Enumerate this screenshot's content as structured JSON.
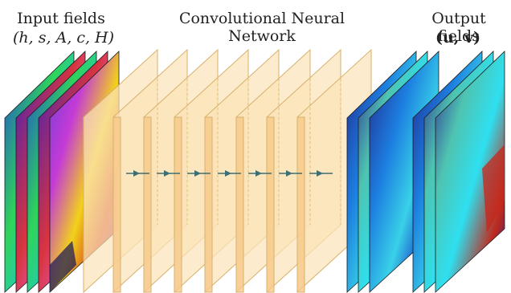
{
  "input": {
    "title": "Input fields",
    "vars": "(h, s, A, c, H)"
  },
  "network": {
    "title": "Convolutional Neural Network"
  },
  "output": {
    "title": "Output fields",
    "vars": "(u, v)"
  },
  "colors": {
    "layer_fill": "#fbe3b8",
    "layer_edge": "#d9b06a",
    "arrow": "#3c6e72"
  }
}
